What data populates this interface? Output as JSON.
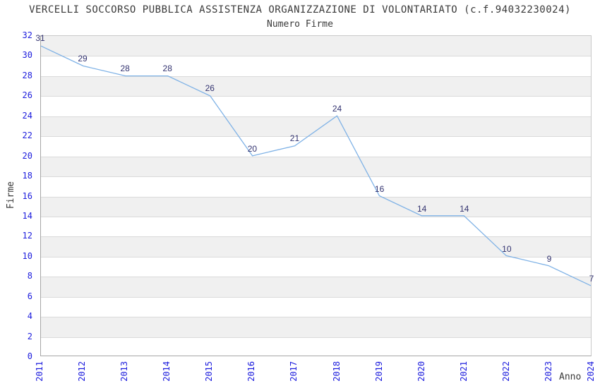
{
  "title": "VERCELLI SOCCORSO PUBBLICA ASSISTENZA ORGANIZZAZIONE DI VOLONTARIATO (c.f.94032230024)",
  "subtitle": "Numero Firme",
  "chart_data": {
    "type": "line",
    "x": [
      "2011",
      "2012",
      "2013",
      "2014",
      "2015",
      "2016",
      "2017",
      "2018",
      "2019",
      "2020",
      "2021",
      "2022",
      "2023",
      "2024"
    ],
    "values": [
      31,
      29,
      28,
      28,
      26,
      20,
      21,
      24,
      16,
      14,
      14,
      10,
      9,
      7
    ],
    "title": "Numero Firme",
    "xlabel": "Anno",
    "ylabel": "Firme",
    "ylim": [
      0,
      32
    ],
    "ytick_step": 2,
    "grid": true,
    "legend": false,
    "data_labels": true,
    "colors": {
      "line": "#7fb2e6",
      "tick_label": "#1c1cdd",
      "data_label": "#333370",
      "band": "#f0f0f0",
      "grid": "#dadada",
      "title": "#3a3a3a"
    }
  }
}
